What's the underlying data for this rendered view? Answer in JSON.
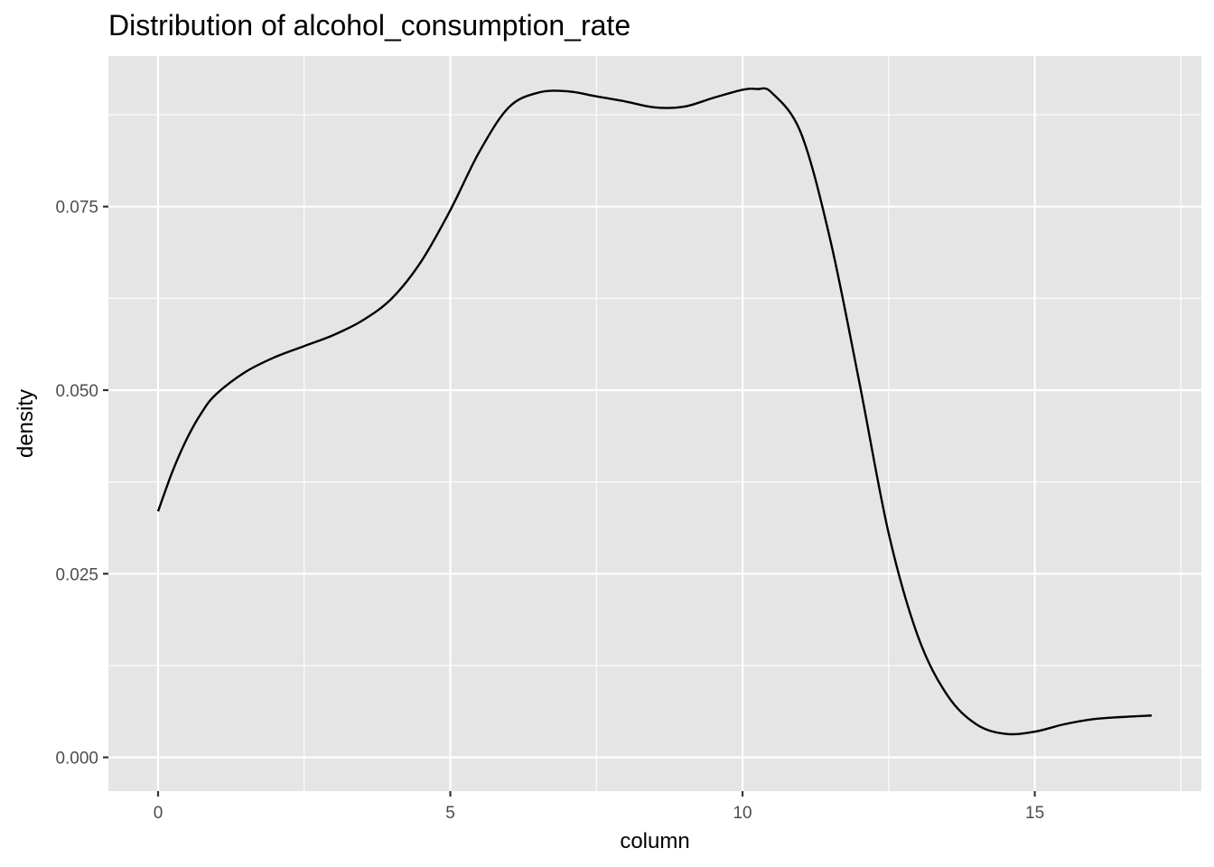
{
  "chart_data": {
    "type": "line",
    "title": "Distribution of alcohol_consumption_rate",
    "xlabel": "column",
    "ylabel": "density",
    "xlim": [
      -0.85,
      17.85
    ],
    "ylim": [
      -0.0046,
      0.0955
    ],
    "x_ticks": [
      0,
      5,
      10,
      15
    ],
    "x_tick_labels": [
      "0",
      "5",
      "10",
      "15"
    ],
    "y_ticks": [
      0.0,
      0.025,
      0.05,
      0.075
    ],
    "y_tick_labels": [
      "0.000",
      "0.025",
      "0.050",
      "0.075"
    ],
    "x_minor_ticks": [
      2.5,
      7.5,
      12.5,
      17.5
    ],
    "y_minor_ticks": [
      0.0125,
      0.0375,
      0.0625,
      0.0875
    ],
    "grid": true,
    "legend": "none",
    "series": [
      {
        "x": [
          0,
          0.25,
          0.5,
          0.75,
          1.0,
          1.5,
          2.0,
          2.5,
          3.0,
          3.5,
          4.0,
          4.5,
          5.0,
          5.5,
          6.0,
          6.5,
          7.0,
          7.5,
          8.0,
          8.5,
          9.0,
          9.5,
          10.0,
          10.25,
          10.5,
          11.0,
          11.5,
          12.0,
          12.5,
          13.0,
          13.5,
          14.0,
          14.5,
          15.0,
          15.5,
          16.0,
          16.5,
          17.0
        ],
        "y": [
          0.0335,
          0.039,
          0.0435,
          0.047,
          0.0495,
          0.0525,
          0.0545,
          0.056,
          0.0575,
          0.0595,
          0.0625,
          0.0675,
          0.0745,
          0.0825,
          0.0885,
          0.0905,
          0.0907,
          0.09,
          0.0893,
          0.0885,
          0.0886,
          0.0898,
          0.0909,
          0.091,
          0.0905,
          0.085,
          0.0705,
          0.051,
          0.0305,
          0.0165,
          0.0085,
          0.0045,
          0.0032,
          0.0035,
          0.0045,
          0.0052,
          0.0055,
          0.0057
        ]
      }
    ],
    "colors": {
      "panel": "#e5e5e5",
      "grid": "#ffffff",
      "line": "#000000",
      "tick_text": "#4d4d4d"
    }
  }
}
